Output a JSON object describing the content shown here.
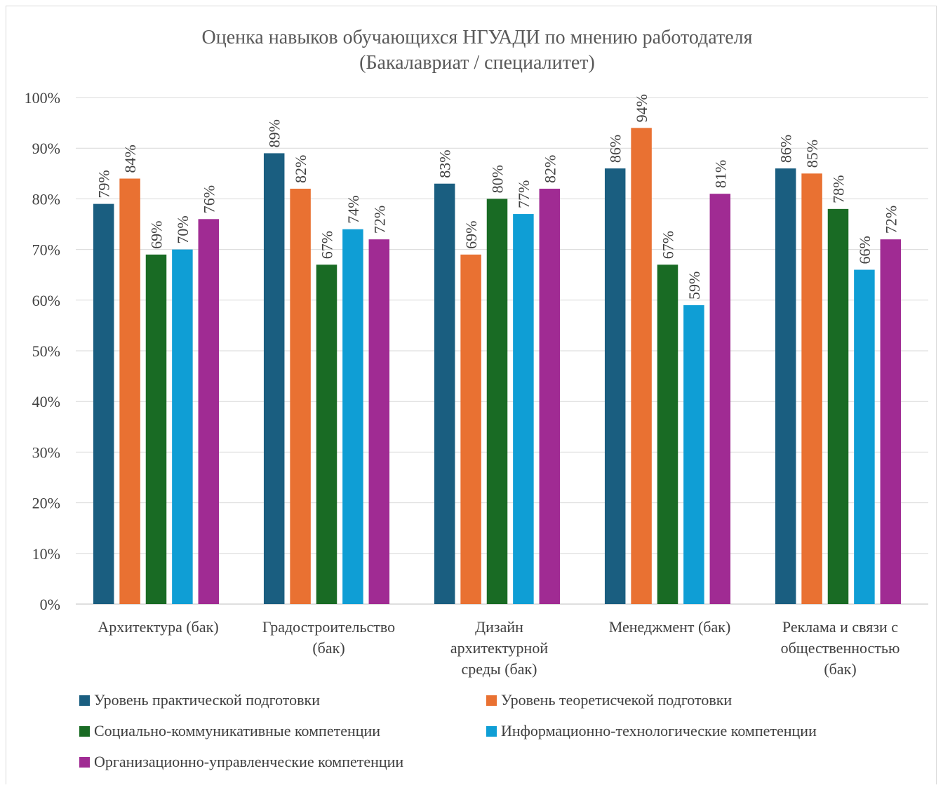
{
  "chart_data": {
    "type": "bar",
    "title_lines": [
      "Оценка навыков обучающихся НГУАДИ по мнению работодателя",
      "(Бакалавриат / специалитет)"
    ],
    "categories": [
      [
        "Архитектура (бак)"
      ],
      [
        "Градостроительство",
        "(бак)"
      ],
      [
        "Дизайн",
        "архитектурной",
        "среды (бак)"
      ],
      [
        "Менеджмент (бак)"
      ],
      [
        "Реклама и связи с",
        "общественностью",
        "(бак)"
      ]
    ],
    "series": [
      {
        "name": "Уровень практической подготовки",
        "color": "#1a5e80",
        "values": [
          79,
          89,
          83,
          86,
          86
        ]
      },
      {
        "name": "Уровень теоретисчекой подготовки",
        "color": "#e97132",
        "values": [
          84,
          82,
          69,
          94,
          85
        ]
      },
      {
        "name": "Социально-коммуникативные компетенции",
        "color": "#196b24",
        "values": [
          69,
          67,
          80,
          67,
          78
        ]
      },
      {
        "name": "Информационно-технологические компетенции",
        "color": "#0f9ed5",
        "values": [
          70,
          74,
          77,
          59,
          66
        ]
      },
      {
        "name": "Организационно-управленческие компетенции",
        "color": "#a02b93",
        "values": [
          76,
          72,
          82,
          81,
          72
        ]
      }
    ],
    "ylim": [
      0,
      100
    ],
    "yticks": [
      "0%",
      "10%",
      "20%",
      "30%",
      "40%",
      "50%",
      "60%",
      "70%",
      "80%",
      "90%",
      "100%"
    ],
    "value_suffix": "%",
    "grid": true,
    "legend_position": "bottom"
  }
}
